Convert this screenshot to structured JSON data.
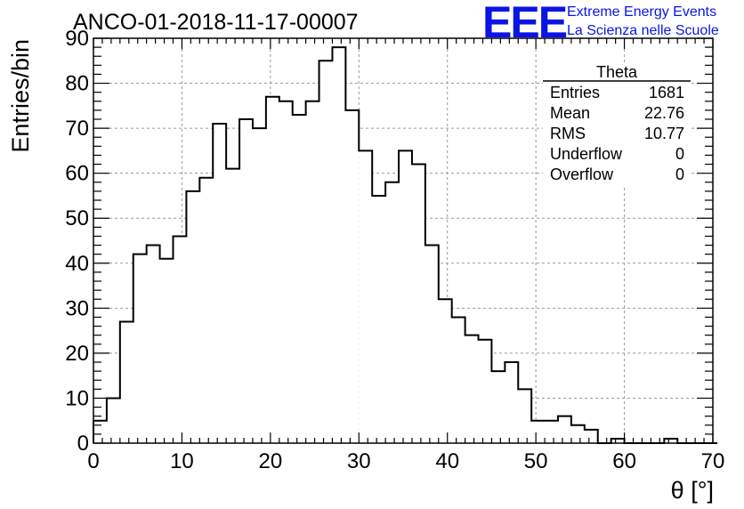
{
  "chart_data": {
    "type": "bar",
    "title": "ANCO-01-2018-11-17-00007",
    "xlabel": "θ [°]",
    "ylabel": "Entries/bin",
    "xlim": [
      0,
      70
    ],
    "ylim": [
      0,
      90
    ],
    "grid": true,
    "bin_width": 1.5,
    "x_ticks": [
      "0",
      "10",
      "20",
      "30",
      "40",
      "50",
      "60",
      "70"
    ],
    "y_ticks": [
      "0",
      "10",
      "20",
      "30",
      "40",
      "50",
      "60",
      "70",
      "80",
      "90"
    ],
    "values": [
      5,
      10,
      27,
      42,
      44,
      41,
      46,
      56,
      59,
      71,
      61,
      72,
      70,
      77,
      76,
      73,
      76,
      85,
      88,
      74,
      65,
      55,
      58,
      65,
      62,
      44,
      32,
      28,
      24,
      23,
      16,
      18,
      12,
      5,
      5,
      6,
      4,
      3,
      0,
      1,
      0,
      0,
      0,
      1,
      0,
      0,
      0
    ],
    "stats_box": {
      "title": "Theta",
      "rows": [
        {
          "label": "Entries",
          "value": "1681"
        },
        {
          "label": "Mean",
          "value": "22.76"
        },
        {
          "label": "RMS",
          "value": "10.77"
        },
        {
          "label": "Underflow",
          "value": "0"
        },
        {
          "label": "Overflow",
          "value": "0"
        }
      ]
    }
  },
  "logo": {
    "mark": "EEE",
    "line1": "Extreme Energy Events",
    "line2": "La Scienza nelle Scuole",
    "color": "#0a14e6"
  }
}
